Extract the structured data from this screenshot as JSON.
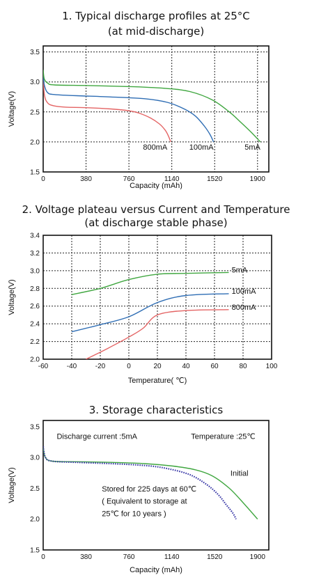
{
  "chart_data": [
    {
      "type": "line",
      "title": [
        "1. Typical discharge profiles at 25°C",
        "(at mid-discharge)"
      ],
      "xlabel": "Capacity (mAh)",
      "ylabel": "Voltage(V)",
      "xlim": [
        0,
        2000
      ],
      "ylim": [
        1.5,
        3.6
      ],
      "x_ticks": [
        0,
        380,
        760,
        1140,
        1520,
        1900
      ],
      "y_ticks": [
        1.5,
        2.0,
        2.5,
        3.0,
        3.5
      ],
      "grid": true,
      "series": [
        {
          "name": "800mA",
          "color": "#e46464",
          "x": [
            0,
            10,
            40,
            100,
            200,
            400,
            600,
            760,
            850,
            950,
            1030,
            1080,
            1110,
            1130
          ],
          "y": [
            3.18,
            2.8,
            2.65,
            2.6,
            2.58,
            2.57,
            2.55,
            2.52,
            2.48,
            2.4,
            2.3,
            2.2,
            2.1,
            2.0
          ]
        },
        {
          "name": "100mA",
          "color": "#2e6db4",
          "x": [
            0,
            10,
            40,
            100,
            300,
            600,
            900,
            1100,
            1250,
            1350,
            1430,
            1480,
            1510
          ],
          "y": [
            3.15,
            2.95,
            2.82,
            2.79,
            2.77,
            2.75,
            2.72,
            2.66,
            2.55,
            2.43,
            2.26,
            2.12,
            2.0
          ]
        },
        {
          "name": "5mA",
          "color": "#3fa63f",
          "x": [
            0,
            10,
            40,
            100,
            400,
            800,
            1100,
            1300,
            1500,
            1650,
            1750,
            1850,
            1925
          ],
          "y": [
            3.2,
            3.05,
            2.98,
            2.95,
            2.94,
            2.92,
            2.89,
            2.84,
            2.7,
            2.5,
            2.33,
            2.15,
            2.0
          ]
        }
      ],
      "annotations": [
        "800mA",
        "100mA",
        "5mA"
      ]
    },
    {
      "type": "line",
      "title": [
        "2. Voltage plateau versus Current and Temperature",
        "(at discharge stable phase)"
      ],
      "xlabel": "Temperature( ℃)",
      "ylabel": "Voltage(V)",
      "xlim": [
        -60,
        100
      ],
      "ylim": [
        2.0,
        3.4
      ],
      "x_ticks": [
        -60,
        -40,
        -20,
        0,
        20,
        40,
        60,
        80,
        100
      ],
      "y_ticks": [
        2.0,
        2.2,
        2.4,
        2.6,
        2.8,
        3.0,
        3.2,
        3.4
      ],
      "grid": true,
      "series": [
        {
          "name": "5mA",
          "color": "#3fa63f",
          "x": [
            -40,
            -20,
            0,
            20,
            40,
            70
          ],
          "y": [
            2.73,
            2.8,
            2.9,
            2.96,
            2.97,
            2.98
          ]
        },
        {
          "name": "100mA",
          "color": "#2e6db4",
          "x": [
            -40,
            -20,
            0,
            20,
            40,
            70
          ],
          "y": [
            2.31,
            2.39,
            2.48,
            2.64,
            2.72,
            2.74
          ]
        },
        {
          "name": "800mA",
          "color": "#e46464",
          "x": [
            -30,
            -15,
            0,
            10,
            20,
            40,
            70
          ],
          "y": [
            2.0,
            2.12,
            2.25,
            2.35,
            2.5,
            2.55,
            2.56
          ]
        }
      ],
      "annotations": [
        "5mA",
        "100mA",
        "800mA"
      ]
    },
    {
      "type": "line",
      "title": [
        "3. Storage characteristics"
      ],
      "xlabel": "Capacity (mAh)",
      "ylabel": "Voltage(V)",
      "xlim": [
        0,
        2000
      ],
      "ylim": [
        1.5,
        3.6
      ],
      "x_ticks": [
        0,
        380,
        760,
        1140,
        1520,
        1900
      ],
      "y_ticks": [
        1.5,
        2.0,
        2.5,
        3.0,
        3.5
      ],
      "grid": false,
      "series": [
        {
          "name": "Initial",
          "color": "#3fa63f",
          "x": [
            0,
            20,
            80,
            300,
            600,
            900,
            1150,
            1350,
            1500,
            1650,
            1780,
            1900
          ],
          "y": [
            3.15,
            3.0,
            2.94,
            2.93,
            2.92,
            2.9,
            2.86,
            2.8,
            2.7,
            2.5,
            2.25,
            2.0
          ]
        },
        {
          "name": "Stored for 225 days at 60 ℃",
          "color": "#3b3aa8",
          "x": [
            0,
            20,
            80,
            300,
            600,
            900,
            1100,
            1300,
            1450,
            1550,
            1620,
            1680,
            1710
          ],
          "y": [
            3.18,
            3.0,
            2.94,
            2.92,
            2.9,
            2.87,
            2.82,
            2.72,
            2.56,
            2.4,
            2.24,
            2.1,
            2.0
          ],
          "style": "dotted"
        }
      ],
      "annotations": [
        "Discharge current :5mA",
        "Temperature :25℃",
        "Initial",
        "Stored for 225 days at 60℃",
        "( Equivalent to storage at",
        "25℃ for 10 years   )"
      ]
    }
  ]
}
